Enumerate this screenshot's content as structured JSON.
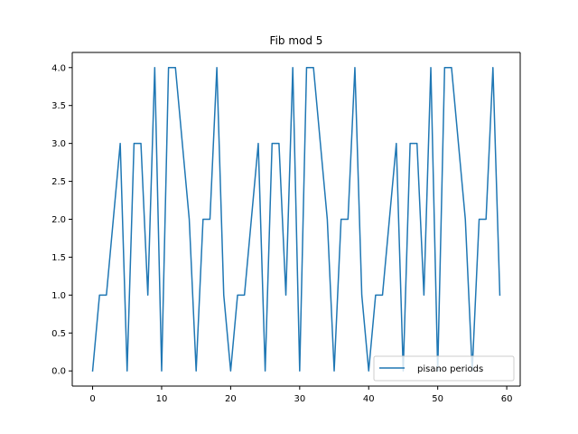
{
  "chart_data": {
    "type": "line",
    "title": "Fib mod 5",
    "xlabel": "",
    "ylabel": "",
    "xlim": [
      -2.95,
      61.95
    ],
    "ylim": [
      -0.2,
      4.2
    ],
    "xticks": [
      0,
      10,
      20,
      30,
      40,
      50,
      60
    ],
    "yticks": [
      0.0,
      0.5,
      1.0,
      1.5,
      2.0,
      2.5,
      3.0,
      3.5,
      4.0
    ],
    "xtick_labels": [
      "0",
      "10",
      "20",
      "30",
      "40",
      "50",
      "60"
    ],
    "ytick_labels": [
      "0.0",
      "0.5",
      "1.0",
      "1.5",
      "2.0",
      "2.5",
      "3.0",
      "3.5",
      "4.0"
    ],
    "grid": false,
    "legend_position": "lower-right",
    "series": [
      {
        "name": "pisano periods",
        "color": "#1f77b4",
        "x": [
          0,
          1,
          2,
          3,
          4,
          5,
          6,
          7,
          8,
          9,
          10,
          11,
          12,
          13,
          14,
          15,
          16,
          17,
          18,
          19,
          20,
          21,
          22,
          23,
          24,
          25,
          26,
          27,
          28,
          29,
          30,
          31,
          32,
          33,
          34,
          35,
          36,
          37,
          38,
          39,
          40,
          41,
          42,
          43,
          44,
          45,
          46,
          47,
          48,
          49,
          50,
          51,
          52,
          53,
          54,
          55,
          56,
          57,
          58,
          59
        ],
        "y": [
          0,
          1,
          1,
          2,
          3,
          0,
          3,
          3,
          1,
          4,
          0,
          4,
          4,
          3,
          2,
          0,
          2,
          2,
          4,
          1,
          0,
          1,
          1,
          2,
          3,
          0,
          3,
          3,
          1,
          4,
          0,
          4,
          4,
          3,
          2,
          0,
          2,
          2,
          4,
          1,
          0,
          1,
          1,
          2,
          3,
          0,
          3,
          3,
          1,
          4,
          0,
          4,
          4,
          3,
          2,
          0,
          2,
          2,
          4,
          1
        ]
      }
    ]
  }
}
